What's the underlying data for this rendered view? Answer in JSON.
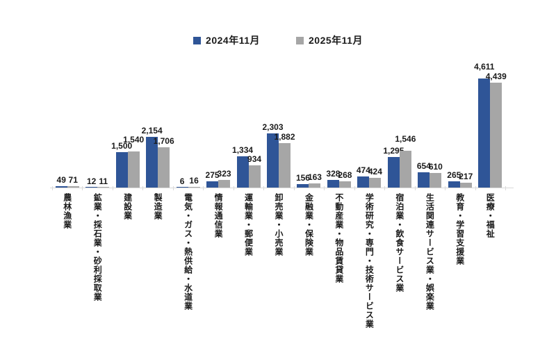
{
  "chart_data": {
    "type": "bar",
    "title": "",
    "xlabel": "",
    "ylabel": "",
    "ylim": [
      0,
      5000
    ],
    "grid": false,
    "legend_position": "top",
    "value_labels": true,
    "axis_color": "#d9d9d9",
    "label_color": "#1a1a1a",
    "categories": [
      "農林漁業",
      "鉱業・採石業・砂利採取業",
      "建設業",
      "製造業",
      "電気・ガス・熱供給・水道業",
      "情報通信業",
      "運輸業・郵便業",
      "卸売業・小売業",
      "金融業・保険業",
      "不動産業・物品賃貸業",
      "学術研究・専門・技術サービス業",
      "宿泊業・飲食サービス業",
      "生活関連サービス業・娯楽業",
      "教育・学習支援業",
      "医療・福祉"
    ],
    "series": [
      {
        "name": "2024年11月",
        "color": "#2F5597",
        "values": [
          49,
          12,
          1500,
          2154,
          6,
          275,
          1334,
          2303,
          156,
          328,
          474,
          1295,
          654,
          265,
          4611
        ]
      },
      {
        "name": "2025年11月",
        "color": "#A6A6A6",
        "values": [
          71,
          11,
          1540,
          1706,
          16,
          323,
          934,
          1882,
          163,
          268,
          424,
          1546,
          610,
          217,
          4439
        ]
      }
    ]
  }
}
